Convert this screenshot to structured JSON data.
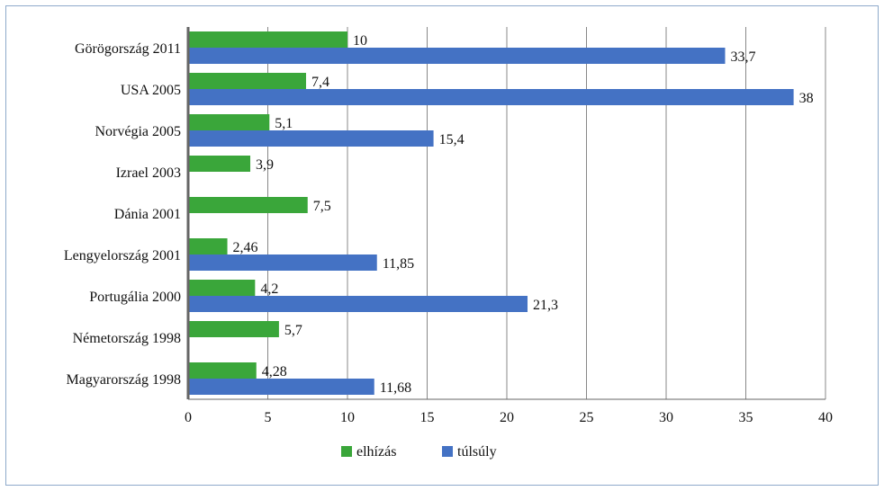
{
  "chart_data": {
    "type": "bar",
    "orientation": "horizontal",
    "categories": [
      "Görögország 2011",
      "USA 2005",
      "Norvégia 2005",
      "Izrael 2003",
      "Dánia 2001",
      "Lengyelország 2001",
      "Portugália 2000",
      "Németország 1998",
      "Magyarország 1998"
    ],
    "series": [
      {
        "name": "elhízás",
        "color": "#3aa63a",
        "values": [
          10,
          7.4,
          5.1,
          3.9,
          7.5,
          2.46,
          4.2,
          5.7,
          4.28
        ],
        "labels": [
          "10",
          "7,4",
          "5,1",
          "3,9",
          "7,5",
          "2,46",
          "4,2",
          "5,7",
          "4,28"
        ]
      },
      {
        "name": "túlsúly",
        "color": "#4472c4",
        "values": [
          33.7,
          38,
          15.4,
          null,
          null,
          11.85,
          21.3,
          null,
          11.68
        ],
        "labels": [
          "33,7",
          "38",
          "15,4",
          null,
          null,
          "11,85",
          "21,3",
          null,
          "11,68"
        ]
      }
    ],
    "xlim": [
      0,
      40
    ],
    "xticks": [
      0,
      5,
      10,
      15,
      20,
      25,
      30,
      35,
      40
    ],
    "grid": true,
    "legend_position": "bottom",
    "title": "",
    "xlabel": "",
    "ylabel": ""
  }
}
